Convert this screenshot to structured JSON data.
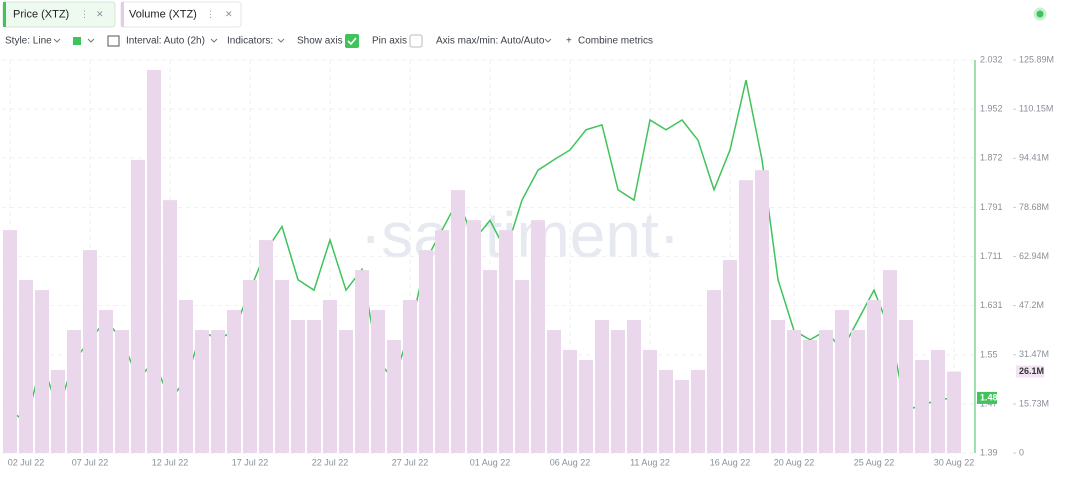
{
  "tabs": [
    "Price (XTZ)",
    "Volume (XTZ)"
  ],
  "toolbar": {
    "style": "Style: Line",
    "interval": "Interval: Auto (2h)",
    "indicators": "Indicators:",
    "show_axis": "Show axis",
    "pin_axis": "Pin axis",
    "axis_minmax": "Axis max/min: Auto/Auto",
    "combine": "Combine metrics"
  },
  "watermark": "·santiment·",
  "chart_data": {
    "type": "line",
    "categories": [
      "02 Jul 22",
      null,
      null,
      null,
      null,
      "07 Jul 22",
      null,
      null,
      null,
      null,
      "12 Jul 22",
      null,
      null,
      null,
      null,
      "17 Jul 22",
      null,
      null,
      null,
      null,
      "22 Jul 22",
      null,
      null,
      null,
      null,
      "27 Jul 22",
      null,
      null,
      null,
      null,
      "01 Aug 22",
      null,
      null,
      null,
      null,
      "06 Aug 22",
      null,
      null,
      null,
      null,
      "11 Aug 22",
      null,
      null,
      null,
      null,
      "16 Aug 22",
      null,
      null,
      null,
      "20 Aug 22",
      null,
      null,
      null,
      null,
      "25 Aug 22",
      null,
      null,
      null,
      null,
      "30 Aug 22"
    ],
    "series": [
      {
        "name": "Price (XTZ)",
        "color": "#3fc35a",
        "last_value": 1.48,
        "values": [
          1.46,
          1.44,
          1.54,
          1.46,
          1.54,
          1.575,
          1.607,
          1.575,
          1.51,
          1.54,
          1.477,
          1.51,
          1.59,
          1.575,
          1.59,
          1.656,
          1.72,
          1.76,
          1.673,
          1.656,
          1.738,
          1.656,
          1.69,
          1.54,
          1.51,
          1.59,
          1.705,
          1.754,
          1.803,
          1.738,
          1.77,
          1.72,
          1.803,
          1.852,
          1.869,
          1.885,
          1.918,
          1.926,
          1.82,
          1.803,
          1.934,
          1.918,
          1.934,
          1.901,
          1.82,
          1.885,
          1.999,
          1.869,
          1.673,
          1.59,
          1.575,
          1.59,
          1.558,
          1.607,
          1.656,
          1.59,
          1.46,
          1.468,
          1.477,
          1.48
        ]
      },
      {
        "name": "Volume (XTZ)",
        "color": "#ead7ec",
        "type": "bar",
        "axis": "y2",
        "last_value": 26100000,
        "last_value_label": "26.1M",
        "values": [
          71400000,
          55400000,
          52200000,
          26600000,
          39400000,
          65000000,
          45800000,
          39400000,
          93900000,
          122700000,
          81000000,
          49000000,
          39400000,
          39400000,
          45800000,
          55400000,
          68200000,
          55400000,
          42600000,
          42600000,
          49000000,
          39400000,
          58600000,
          45800000,
          36200000,
          49000000,
          65000000,
          71400000,
          84200000,
          74600000,
          58600000,
          71400000,
          55400000,
          74600000,
          39400000,
          33000000,
          29800000,
          42600000,
          39400000,
          42600000,
          33000000,
          26600000,
          23400000,
          26600000,
          52200000,
          61800000,
          87400000,
          90600000,
          42600000,
          39400000,
          36200000,
          39400000,
          45800000,
          39400000,
          49000000,
          58600000,
          42600000,
          29800000,
          33000000,
          26100000
        ]
      }
    ],
    "ylim": [
      1.39,
      2.032
    ],
    "yticks": [
      1.39,
      1.47,
      1.55,
      1.631,
      1.711,
      1.791,
      1.872,
      1.952,
      2.032
    ],
    "y2lim": [
      0,
      125890000
    ],
    "y2ticks": [
      0,
      {
        "value": 15730000,
        "label": "15.73M"
      },
      {
        "value": 31470000,
        "label": "31.47M"
      },
      {
        "value": 47200000,
        "label": "47.2M"
      },
      {
        "value": 62940000,
        "label": "62.94M"
      },
      {
        "value": 78680000,
        "label": "78.68M"
      },
      {
        "value": 94410000,
        "label": "94.41M"
      },
      {
        "value": 110150000,
        "label": "110.15M"
      },
      {
        "value": 125890000,
        "label": "125.89M"
      }
    ],
    "grid": true
  }
}
